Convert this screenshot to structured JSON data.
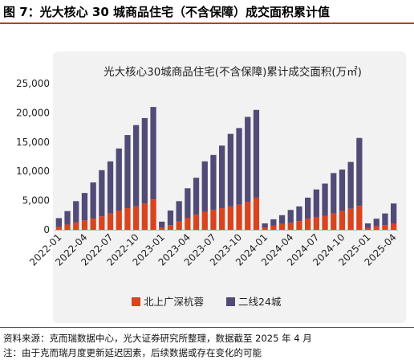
{
  "header": {
    "figure_title": "图 7：光大核心 30 城商品住宅（不含保障）成交面积累计值"
  },
  "footer": {
    "source": "资料来源：克而瑞数据中心，光大证券研究所整理，数据截至 2025 年 4 月",
    "note": "注：由于克而瑞月度更新延迟因素，后续数据或存在变化的可能"
  },
  "colors": {
    "series_tier1": "#d9431e",
    "series_tier2": "#514b77",
    "title_rule": "#c0392b",
    "panel_bg": "#f2f2f2"
  },
  "chart_data": {
    "type": "bar",
    "stacked": true,
    "title": "光大核心30城商品住宅(不含保障)累计成交面积(万㎡)",
    "xlabel": "",
    "ylabel": "",
    "ylim": [
      0,
      25000
    ],
    "yticks": [
      0,
      5000,
      10000,
      15000,
      20000,
      25000
    ],
    "ytick_labels": [
      "0",
      "5,000",
      "10,000",
      "15,000",
      "20,000",
      "25,000"
    ],
    "legend_position": "bottom",
    "grid": false,
    "categories": [
      "2022-01",
      "2022-02",
      "2022-03",
      "2022-04",
      "2022-05",
      "2022-06",
      "2022-07",
      "2022-08",
      "2022-09",
      "2022-10",
      "2022-11",
      "2022-12",
      "2023-01",
      "2023-02",
      "2023-03",
      "2023-04",
      "2023-05",
      "2023-06",
      "2023-07",
      "2023-08",
      "2023-09",
      "2023-10",
      "2023-11",
      "2023-12",
      "2024-01",
      "2024-02",
      "2024-03",
      "2024-04",
      "2024-05",
      "2024-06",
      "2024-07",
      "2024-08",
      "2024-09",
      "2024-10",
      "2024-11",
      "2024-12",
      "2025-01",
      "2025-02",
      "2025-03",
      "2025-04"
    ],
    "xtick_labels": [
      "2022-01",
      "2022-04",
      "2022-07",
      "2022-10",
      "2023-01",
      "2023-04",
      "2023-07",
      "2023-10",
      "2024-01",
      "2024-04",
      "2024-07",
      "2024-10",
      "2025-01",
      "2025-04"
    ],
    "series": [
      {
        "name": "北上广深杭蓉",
        "values": [
          500,
          900,
          1300,
          1600,
          1900,
          2300,
          2800,
          3300,
          3700,
          4000,
          4500,
          5200,
          400,
          800,
          1400,
          2000,
          2600,
          3100,
          3400,
          3700,
          4000,
          4300,
          4800,
          5500,
          400,
          700,
          1000,
          1200,
          1500,
          1900,
          2200,
          2400,
          2800,
          3200,
          3600,
          4100,
          300,
          600,
          800,
          1100
        ]
      },
      {
        "name": "二线24城",
        "values": [
          1500,
          2300,
          3600,
          4700,
          6200,
          7900,
          8900,
          10600,
          12500,
          13900,
          14600,
          15800,
          1000,
          2500,
          3500,
          5100,
          6300,
          8600,
          9400,
          10700,
          12400,
          13100,
          14500,
          15000,
          700,
          1100,
          1500,
          2200,
          2500,
          3600,
          4700,
          5500,
          6900,
          7100,
          8000,
          11600,
          800,
          1300,
          2000,
          3400
        ]
      }
    ]
  }
}
